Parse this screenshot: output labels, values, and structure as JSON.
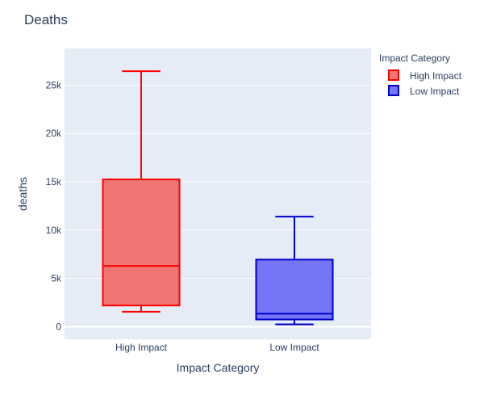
{
  "chart_data": {
    "type": "box",
    "title": "Deaths",
    "xlabel": "Impact Category",
    "ylabel": "deaths",
    "ylim": [
      -1300,
      28800
    ],
    "yticks": [
      0,
      5000,
      10000,
      15000,
      20000,
      25000
    ],
    "ytick_labels": [
      "0",
      "5k",
      "10k",
      "15k",
      "20k",
      "25k"
    ],
    "categories": [
      "High Impact",
      "Low Impact"
    ],
    "grid": true,
    "legend_title": "Impact Category",
    "legend_position": "top-right",
    "series": [
      {
        "name": "High Impact",
        "category": "High Impact",
        "min": 1550,
        "q1": 2200,
        "median": 6300,
        "q3": 15250,
        "max": 26450,
        "color": "#ff0000",
        "fill": "#f07575"
      },
      {
        "name": "Low Impact",
        "category": "Low Impact",
        "min": 250,
        "q1": 750,
        "median": 1350,
        "q3": 6950,
        "max": 11400,
        "color": "#0000cc",
        "fill": "#7575f5"
      }
    ]
  }
}
